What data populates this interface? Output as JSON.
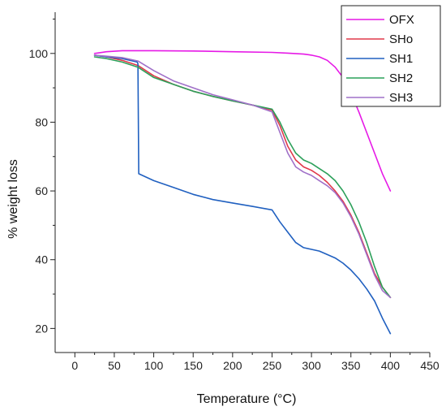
{
  "chart_data": {
    "type": "line",
    "xlabel": "Temperature (°C)",
    "ylabel": "% weight loss",
    "xlim": [
      -25,
      450
    ],
    "ylim": [
      13,
      112
    ],
    "xticks": [
      0,
      50,
      100,
      150,
      200,
      250,
      300,
      350,
      400,
      450
    ],
    "yticks": [
      20,
      40,
      60,
      80,
      100
    ],
    "grid": false,
    "legend_position": "top-right",
    "series": [
      {
        "name": "OFX",
        "color": "#e619e6",
        "x": [
          25,
          40,
          60,
          100,
          150,
          200,
          250,
          270,
          290,
          300,
          310,
          320,
          330,
          340,
          350,
          360,
          370,
          380,
          390,
          400
        ],
        "y": [
          100.0,
          100.5,
          100.8,
          100.8,
          100.7,
          100.5,
          100.3,
          100.1,
          99.8,
          99.5,
          99.0,
          98.0,
          96.0,
          93.0,
          88.5,
          83.0,
          77.0,
          71.0,
          65.0,
          60.0
        ]
      },
      {
        "name": "SHo",
        "color": "#e0384a",
        "x": [
          25,
          40,
          60,
          80,
          100,
          125,
          150,
          175,
          200,
          225,
          250,
          260,
          270,
          280,
          290,
          300,
          310,
          320,
          330,
          340,
          350,
          360,
          370,
          380,
          390,
          400
        ],
        "y": [
          99.5,
          99.0,
          98.0,
          96.5,
          93.5,
          91.0,
          89.0,
          87.5,
          86.2,
          85.0,
          83.5,
          79.0,
          73.0,
          69.0,
          67.0,
          66.0,
          64.5,
          62.5,
          60.0,
          57.0,
          53.0,
          48.0,
          42.0,
          36.0,
          32.0,
          29.0
        ]
      },
      {
        "name": "SH1",
        "color": "#2060c0",
        "x": [
          25,
          40,
          60,
          79,
          80,
          81,
          100,
          125,
          150,
          175,
          200,
          225,
          250,
          260,
          270,
          280,
          290,
          300,
          310,
          320,
          330,
          340,
          350,
          360,
          370,
          380,
          390,
          400
        ],
        "y": [
          99.5,
          99.0,
          98.5,
          97.5,
          97.0,
          65.0,
          63.0,
          61.0,
          59.0,
          57.5,
          56.5,
          55.5,
          54.5,
          51.0,
          48.0,
          45.0,
          43.5,
          43.0,
          42.5,
          41.5,
          40.5,
          39.0,
          37.0,
          34.5,
          31.5,
          28.0,
          23.0,
          18.5
        ]
      },
      {
        "name": "SH2",
        "color": "#2ca05a",
        "x": [
          25,
          40,
          60,
          80,
          100,
          125,
          150,
          175,
          200,
          225,
          250,
          260,
          270,
          280,
          290,
          300,
          310,
          320,
          330,
          340,
          350,
          360,
          370,
          380,
          390,
          400
        ],
        "y": [
          99.0,
          98.5,
          97.5,
          96.0,
          93.0,
          91.0,
          89.0,
          87.5,
          86.2,
          85.0,
          83.8,
          80.0,
          75.0,
          71.0,
          69.0,
          68.0,
          66.5,
          65.0,
          63.0,
          60.0,
          56.0,
          51.0,
          45.0,
          38.0,
          32.0,
          29.0
        ]
      },
      {
        "name": "SH3",
        "color": "#a070c8",
        "x": [
          25,
          40,
          60,
          80,
          100,
          125,
          150,
          175,
          200,
          225,
          250,
          260,
          270,
          280,
          290,
          300,
          310,
          320,
          330,
          340,
          350,
          360,
          370,
          380,
          390,
          400
        ],
        "y": [
          99.5,
          99.2,
          98.8,
          97.8,
          95.0,
          92.0,
          90.0,
          88.0,
          86.5,
          85.0,
          83.0,
          77.0,
          71.0,
          67.0,
          65.5,
          64.5,
          63.0,
          61.5,
          59.5,
          56.5,
          52.5,
          47.5,
          41.5,
          35.5,
          31.0,
          29.0
        ]
      }
    ]
  }
}
